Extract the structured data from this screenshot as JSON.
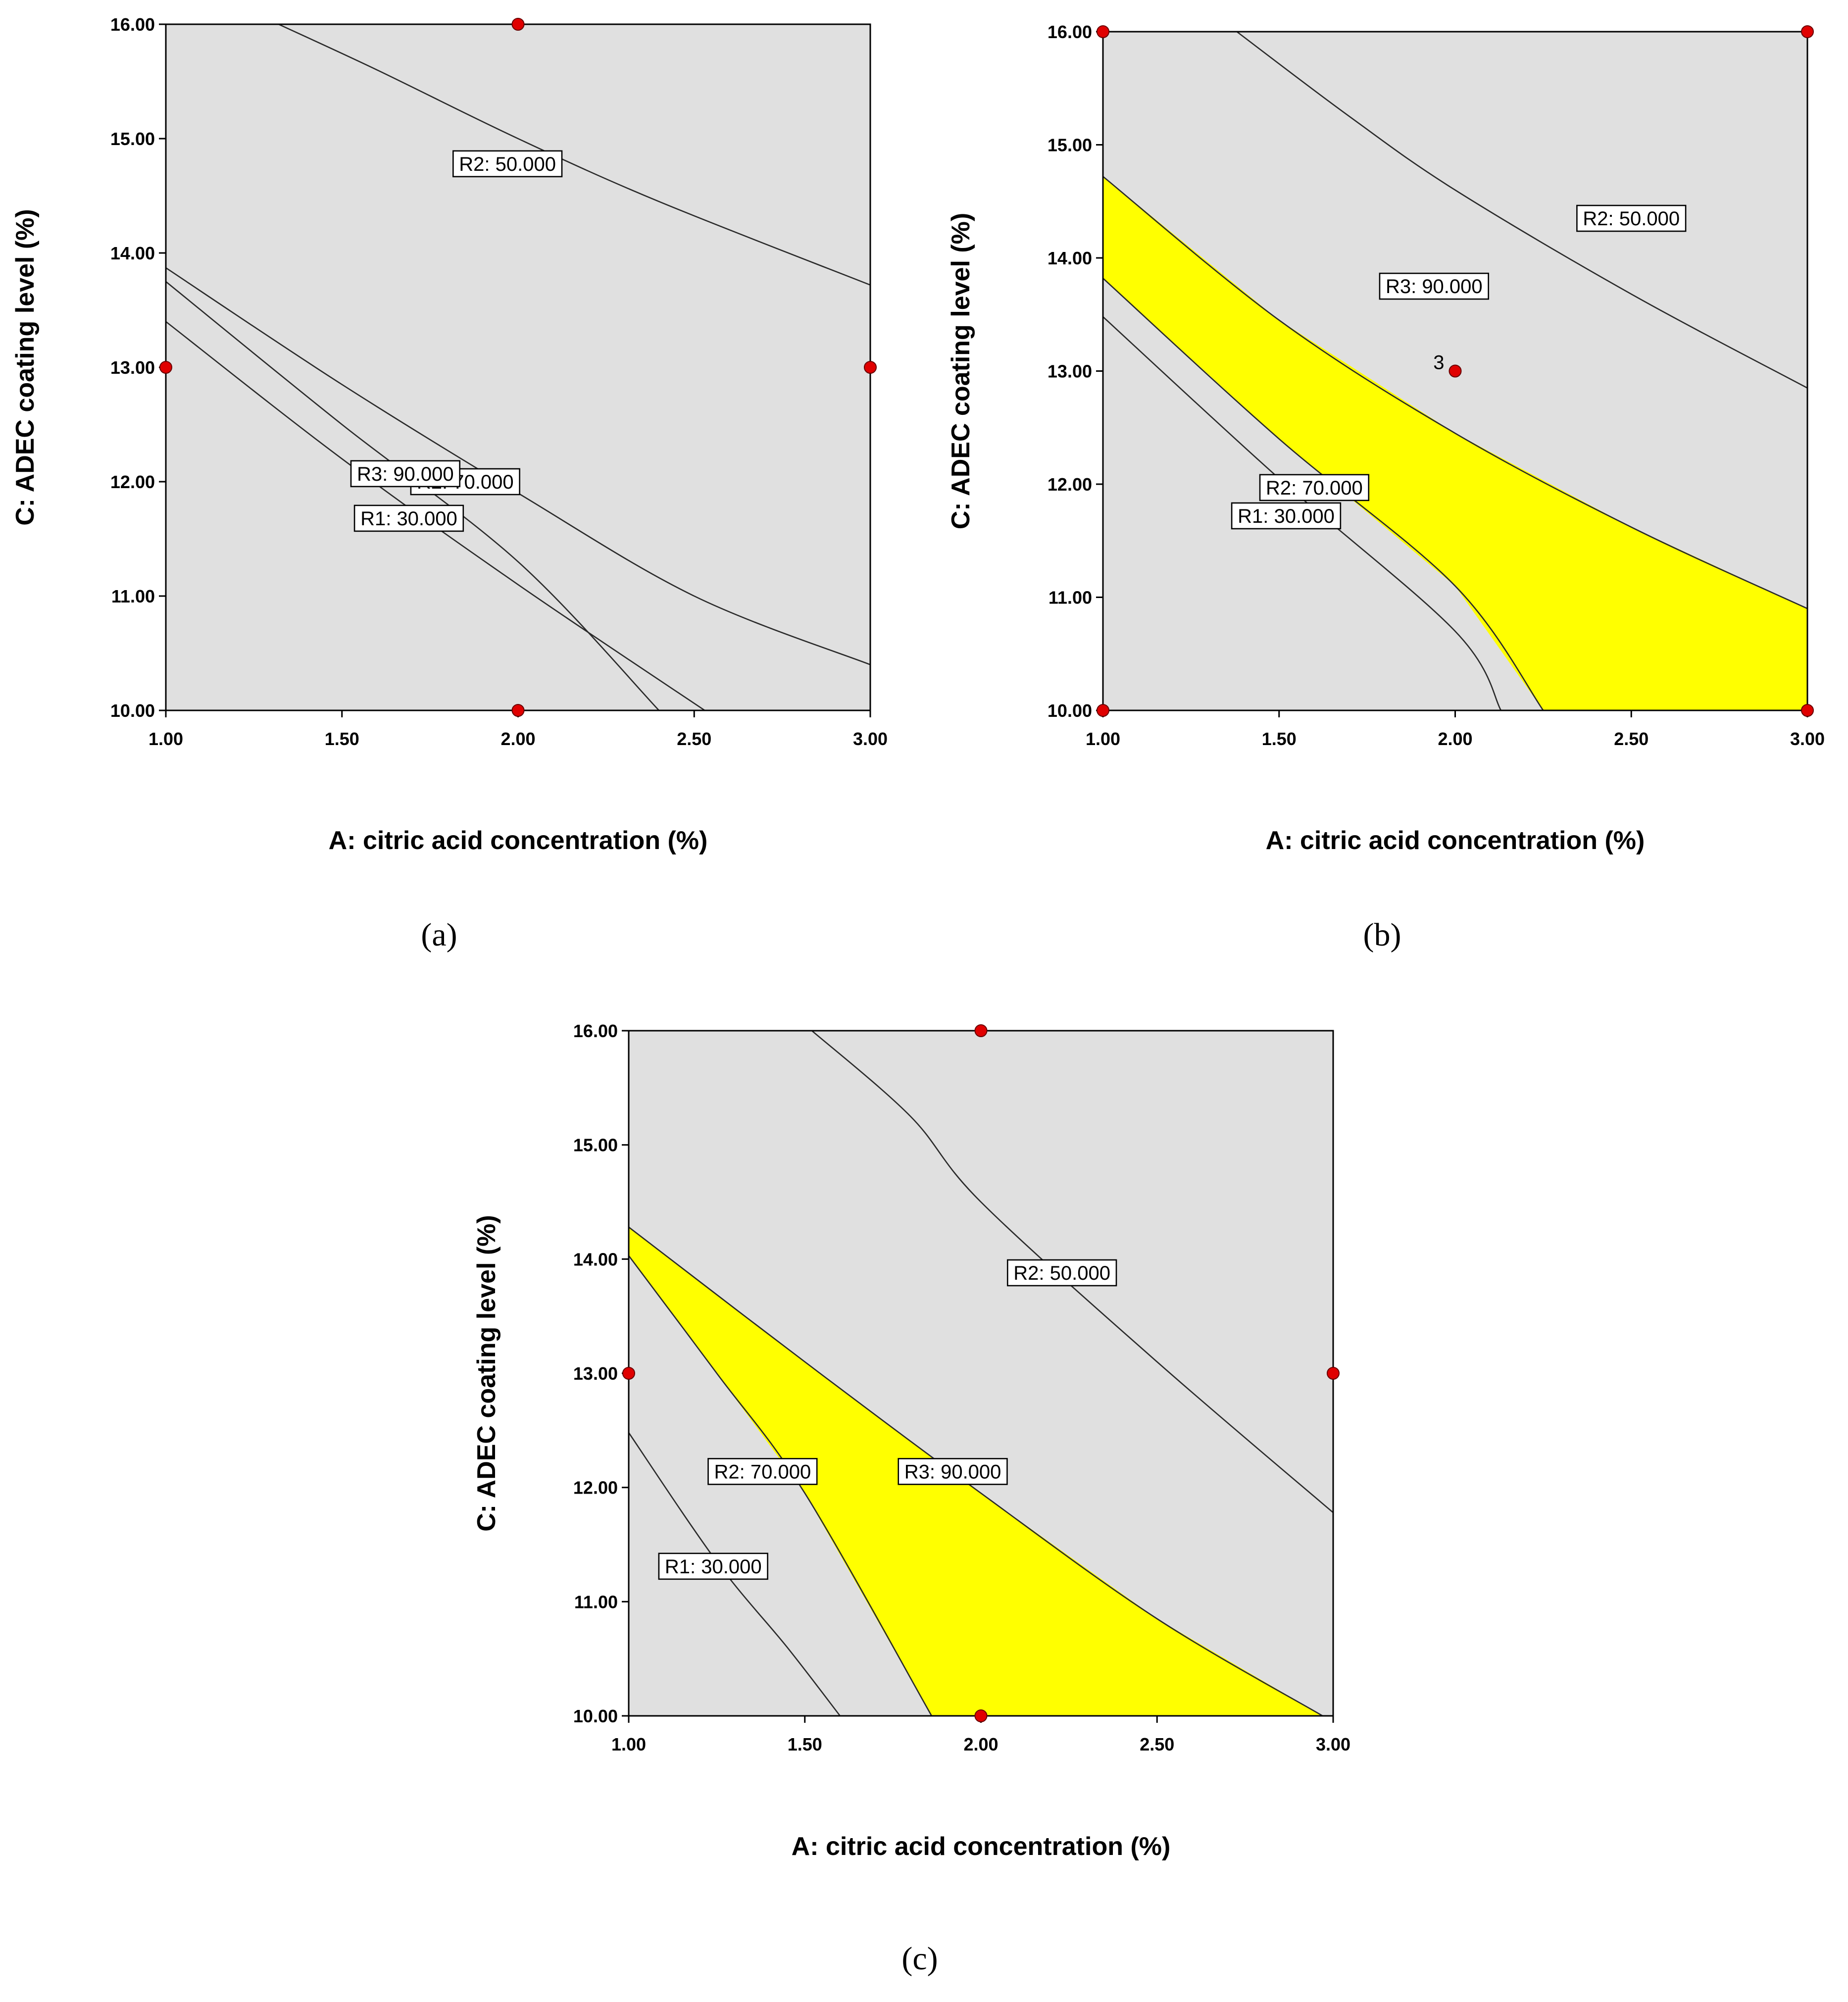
{
  "figure": {
    "colors": {
      "plot_background": "#e0e0e0",
      "optimal_region": "#ffff00",
      "design_point": "#e00000",
      "contour_line": "#2a2a2a"
    }
  },
  "chart_data": [
    {
      "type": "contour",
      "panel": "(a)",
      "xlabel": "A: citric acid concentration (%)",
      "ylabel": "C: ADEC coating level (%)",
      "xlim": [
        1.0,
        3.0
      ],
      "ylim": [
        10.0,
        16.0
      ],
      "x_ticks": [
        "1.00",
        "1.50",
        "2.00",
        "2.50",
        "3.00"
      ],
      "y_ticks": [
        "10.00",
        "11.00",
        "12.00",
        "13.00",
        "14.00",
        "15.00",
        "16.00"
      ],
      "contours": [
        {
          "label": "R2: 50.000",
          "points": [
            [
              1.32,
              16.0
            ],
            [
              1.6,
              15.6
            ],
            [
              2.0,
              15.0
            ],
            [
              2.4,
              14.45
            ],
            [
              3.0,
              13.72
            ]
          ]
        },
        {
          "label": "R2: 70.000",
          "points": [
            [
              1.0,
              13.87
            ],
            [
              1.5,
              12.85
            ],
            [
              2.0,
              11.9
            ],
            [
              2.5,
              11.0
            ],
            [
              3.0,
              10.4
            ]
          ]
        },
        {
          "label": "R3: 90.000",
          "points": [
            [
              1.0,
              13.75
            ],
            [
              1.5,
              12.5
            ],
            [
              2.0,
              11.3
            ],
            [
              2.4,
              10.0
            ]
          ]
        },
        {
          "label": "R1: 30.000",
          "points": [
            [
              1.0,
              13.4
            ],
            [
              1.5,
              12.2
            ],
            [
              2.0,
              11.1
            ],
            [
              2.53,
              10.0
            ]
          ]
        }
      ],
      "labels": [
        {
          "text": "R2: 50.000",
          "x": 1.97,
          "y": 14.78
        },
        {
          "text": "R2: 70.000",
          "x": 1.85,
          "y": 12.0
        },
        {
          "text": "R3: 90.000",
          "x": 1.68,
          "y": 12.07
        },
        {
          "text": "R1: 30.000",
          "x": 1.69,
          "y": 11.68
        }
      ],
      "optimal_region": [],
      "design_points": [
        {
          "x": 2.0,
          "y": 16.0
        },
        {
          "x": 1.0,
          "y": 13.0
        },
        {
          "x": 3.0,
          "y": 13.0
        },
        {
          "x": 2.0,
          "y": 10.0
        }
      ]
    },
    {
      "type": "contour",
      "panel": "(b)",
      "xlabel": "A: citric acid concentration (%)",
      "ylabel": "C: ADEC coating level (%)",
      "xlim": [
        1.0,
        3.0
      ],
      "ylim": [
        10.0,
        16.0
      ],
      "x_ticks": [
        "1.00",
        "1.50",
        "2.00",
        "2.50",
        "3.00"
      ],
      "y_ticks": [
        "10.00",
        "11.00",
        "12.00",
        "13.00",
        "14.00",
        "15.00",
        "16.00"
      ],
      "contours": [
        {
          "label": "R2: 50.000",
          "points": [
            [
              1.38,
              16.0
            ],
            [
              1.7,
              15.25
            ],
            [
              2.0,
              14.6
            ],
            [
              2.5,
              13.68
            ],
            [
              3.0,
              12.85
            ]
          ]
        },
        {
          "label": "R3: 90.000",
          "points": [
            [
              1.0,
              14.72
            ],
            [
              1.5,
              13.45
            ],
            [
              2.0,
              12.45
            ],
            [
              2.5,
              11.62
            ],
            [
              3.0,
              10.9
            ]
          ]
        },
        {
          "label": "R2: 70.000",
          "points": [
            [
              1.0,
              13.82
            ],
            [
              1.5,
              12.4
            ],
            [
              2.0,
              11.1
            ],
            [
              2.25,
              10.0
            ]
          ]
        },
        {
          "label": "R1: 30.000",
          "points": [
            [
              1.0,
              13.48
            ],
            [
              1.5,
              12.05
            ],
            [
              2.0,
              10.7
            ],
            [
              2.13,
              10.0
            ]
          ]
        }
      ],
      "labels": [
        {
          "text": "R2: 50.000",
          "x": 2.5,
          "y": 14.35
        },
        {
          "text": "R3: 90.000",
          "x": 1.94,
          "y": 13.75
        },
        {
          "text": "R2: 70.000",
          "x": 1.6,
          "y": 11.97
        },
        {
          "text": "R1: 30.000",
          "x": 1.52,
          "y": 11.72
        }
      ],
      "optimal_region": [
        [
          [
            1.0,
            14.72
          ],
          [
            1.5,
            13.45
          ],
          [
            2.0,
            12.45
          ],
          [
            2.5,
            11.62
          ],
          [
            3.0,
            10.9
          ],
          [
            3.0,
            10.0
          ],
          [
            2.25,
            10.0
          ],
          [
            2.0,
            11.1
          ],
          [
            1.5,
            12.4
          ],
          [
            1.0,
            13.82
          ]
        ]
      ],
      "design_points": [
        {
          "x": 1.0,
          "y": 16.0
        },
        {
          "x": 3.0,
          "y": 16.0
        },
        {
          "x": 2.0,
          "y": 13.0,
          "count": "3"
        },
        {
          "x": 1.0,
          "y": 10.0
        },
        {
          "x": 3.0,
          "y": 10.0
        }
      ]
    },
    {
      "type": "contour",
      "panel": "(c)",
      "xlabel": "A: citric acid concentration (%)",
      "ylabel": "C: ADEC coating level (%)",
      "xlim": [
        1.0,
        3.0
      ],
      "ylim": [
        10.0,
        16.0
      ],
      "x_ticks": [
        "1.00",
        "1.50",
        "2.00",
        "2.50",
        "3.00"
      ],
      "y_ticks": [
        "10.00",
        "11.00",
        "12.00",
        "13.00",
        "14.00",
        "15.00",
        "16.00"
      ],
      "contours": [
        {
          "label": "R2: 50.000",
          "points": [
            [
              1.52,
              16.0
            ],
            [
              1.8,
              15.25
            ],
            [
              2.0,
              14.5
            ],
            [
              2.5,
              13.1
            ],
            [
              3.0,
              11.78
            ]
          ]
        },
        {
          "label": "R3: 90.000",
          "points": [
            [
              1.0,
              14.28
            ],
            [
              1.5,
              13.1
            ],
            [
              2.0,
              11.95
            ],
            [
              2.5,
              10.85
            ],
            [
              2.97,
              10.0
            ]
          ]
        },
        {
          "label": "R2: 70.000",
          "points": [
            [
              1.0,
              14.03
            ],
            [
              1.25,
              13.0
            ],
            [
              1.5,
              11.95
            ],
            [
              1.86,
              10.0
            ]
          ]
        },
        {
          "label": "R1: 30.000",
          "points": [
            [
              1.0,
              12.48
            ],
            [
              1.25,
              11.35
            ],
            [
              1.45,
              10.6
            ],
            [
              1.6,
              10.0
            ]
          ]
        }
      ],
      "labels": [
        {
          "text": "R2: 50.000",
          "x": 2.23,
          "y": 13.88
        },
        {
          "text": "R2: 70.000",
          "x": 1.38,
          "y": 12.14
        },
        {
          "text": "R3: 90.000",
          "x": 1.92,
          "y": 12.14
        },
        {
          "text": "R1: 30.000",
          "x": 1.24,
          "y": 11.31
        }
      ],
      "optimal_region": [
        [
          [
            1.0,
            14.28
          ],
          [
            1.5,
            13.1
          ],
          [
            2.0,
            11.95
          ],
          [
            2.5,
            10.85
          ],
          [
            2.97,
            10.0
          ],
          [
            1.86,
            10.0
          ],
          [
            1.5,
            11.95
          ],
          [
            1.25,
            13.0
          ],
          [
            1.0,
            14.03
          ]
        ]
      ],
      "design_points": [
        {
          "x": 2.0,
          "y": 16.0
        },
        {
          "x": 1.0,
          "y": 13.0
        },
        {
          "x": 3.0,
          "y": 13.0
        },
        {
          "x": 2.0,
          "y": 10.0
        }
      ]
    }
  ]
}
